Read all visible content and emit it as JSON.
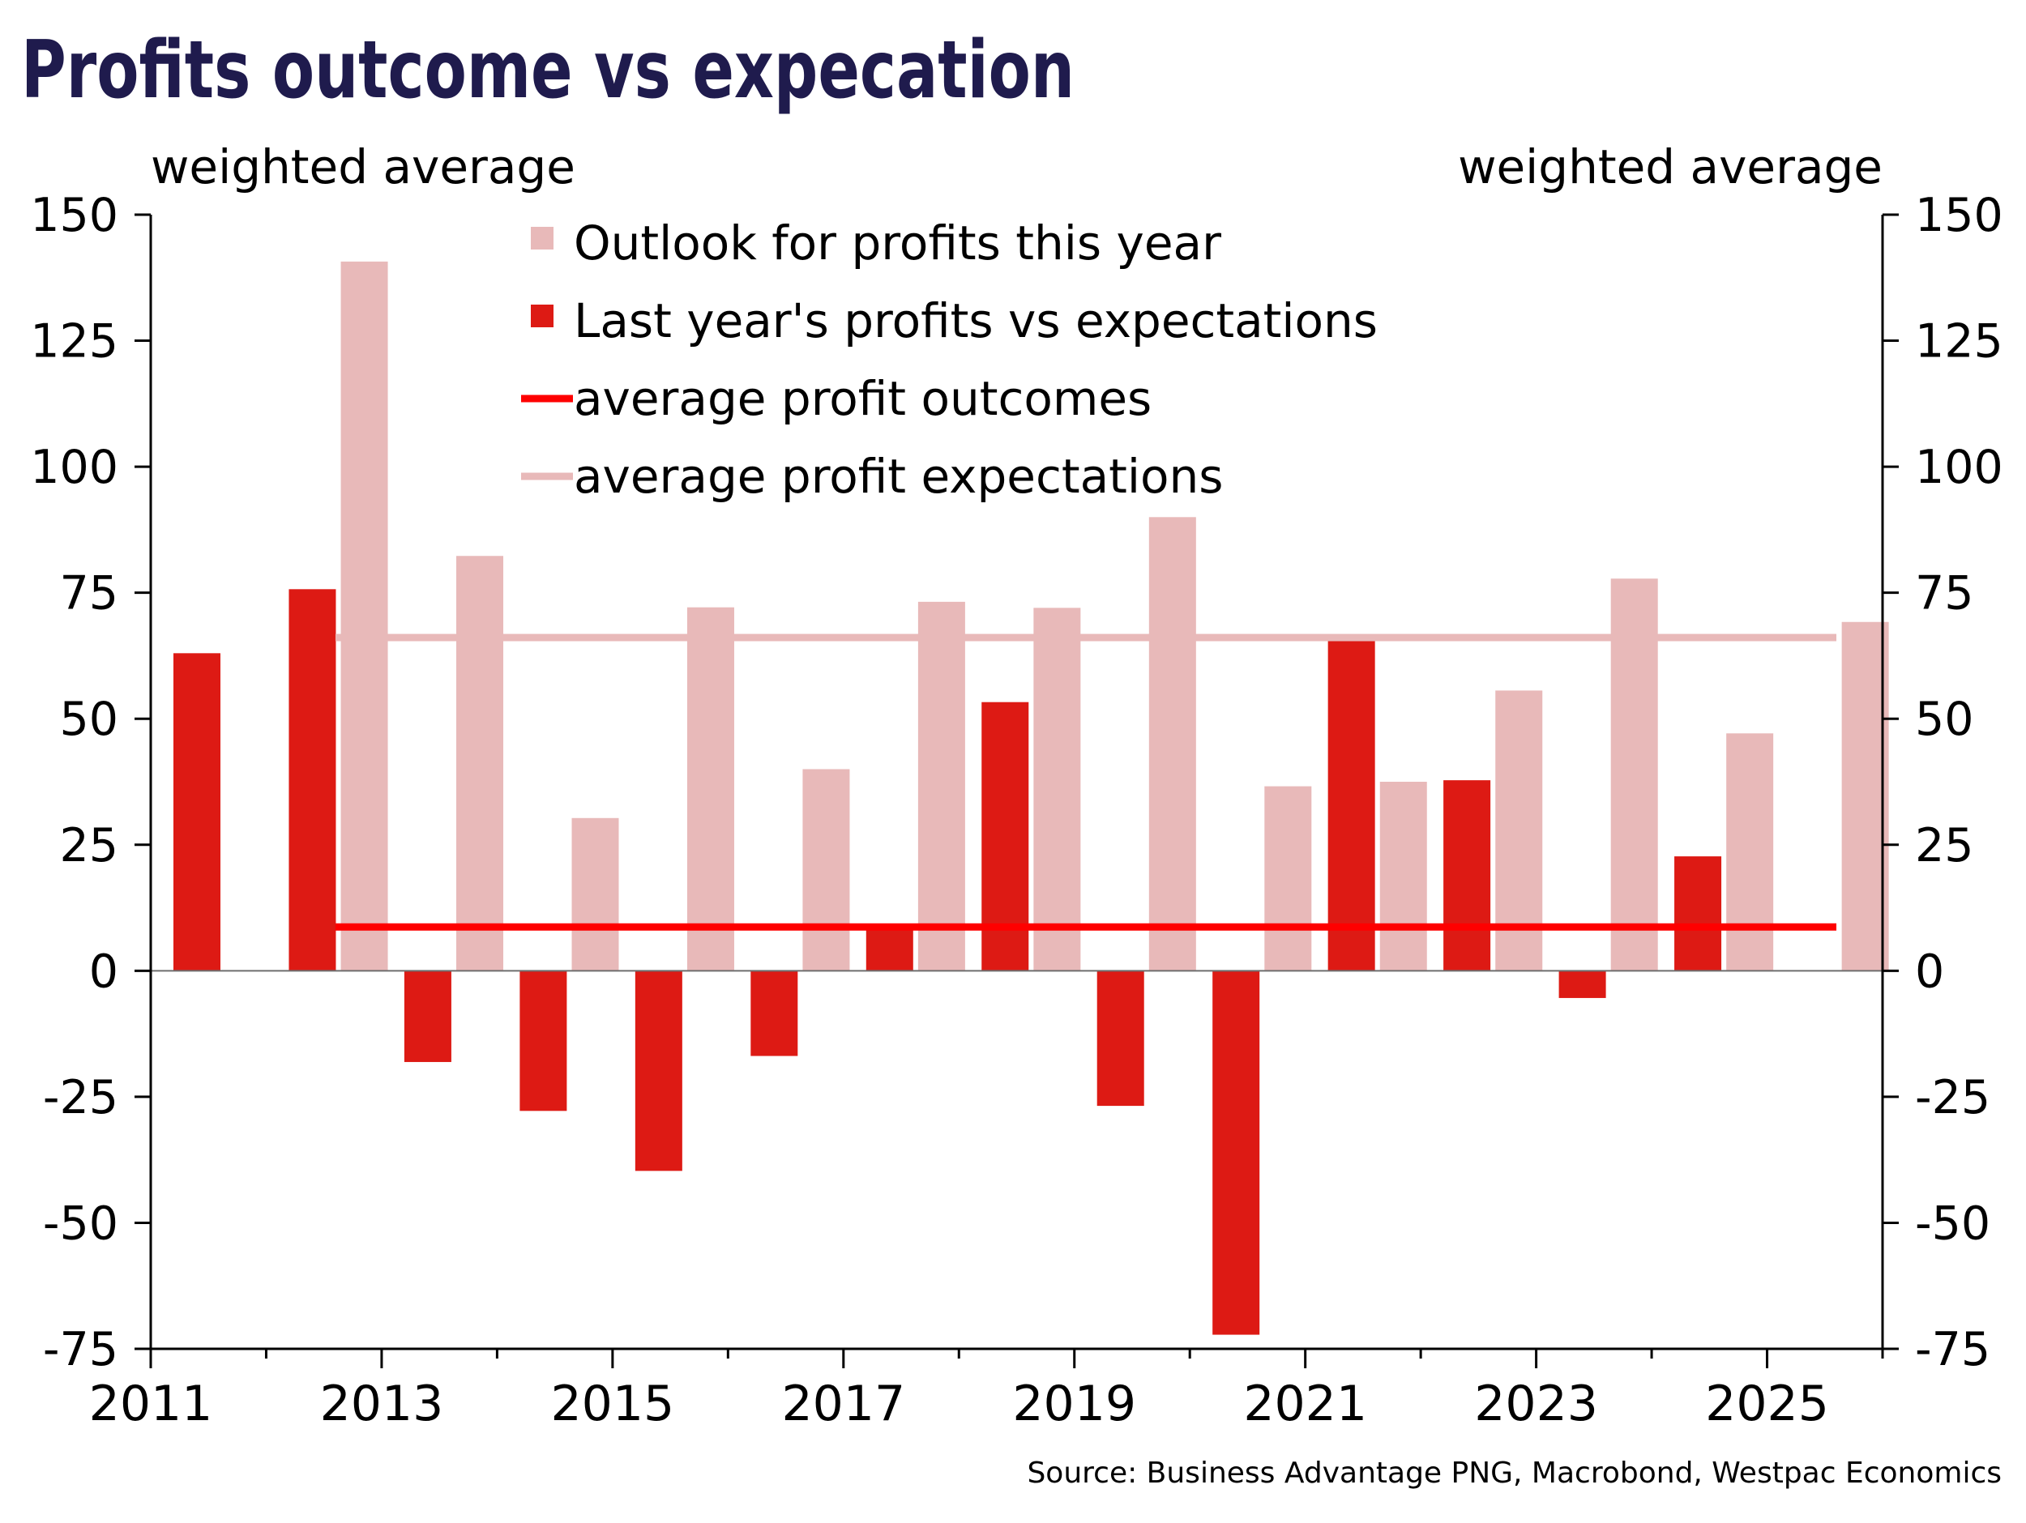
{
  "chart_data": {
    "type": "bar",
    "title": "Profits outcome vs expecation",
    "source": "Source: Business Advantage PNG, Macrobond, Westpac Economics",
    "y_axis_left": {
      "unit_label": "weighted average",
      "ticks": [
        150,
        125,
        100,
        75,
        50,
        25,
        0,
        -25,
        -50,
        -75
      ]
    },
    "y_axis_right": {
      "unit_label": "weighted average",
      "ticks": [
        150,
        125,
        100,
        75,
        50,
        25,
        0,
        -25,
        -50,
        -75
      ]
    },
    "ylim": [
      -75,
      150
    ],
    "xlim": [
      2011,
      2026
    ],
    "x_ticks": [
      2011,
      2013,
      2015,
      2017,
      2019,
      2021,
      2023,
      2025
    ],
    "grid": false,
    "legend_placement": "top-center",
    "colors": {
      "outlook": "#e8b9b9",
      "last_year": "#dd1a14",
      "avg_outcome": "#fe0000",
      "avg_expectation": "#e8b9b9",
      "title": "#1f1b4d",
      "axis": "#000000"
    },
    "series": [
      {
        "name": "Outlook for profits this year",
        "x": [
          2012.85,
          2013.85,
          2014.85,
          2015.85,
          2016.85,
          2017.85,
          2018.85,
          2019.85,
          2020.85,
          2021.85,
          2022.85,
          2023.85,
          2024.85,
          2025.85
        ],
        "values": [
          140.7,
          82.3,
          30.3,
          72.1,
          40.0,
          73.2,
          72.0,
          90.0,
          36.6,
          37.5,
          55.6,
          77.8,
          47.1,
          69.2
        ]
      },
      {
        "name": "Last year's profits vs expectations",
        "x": [
          2011.4,
          2012.4,
          2013.4,
          2014.4,
          2015.4,
          2016.4,
          2017.4,
          2018.4,
          2019.4,
          2020.4,
          2021.4,
          2022.4,
          2023.4,
          2024.4
        ],
        "values": [
          63.0,
          75.7,
          -18.1,
          -27.8,
          -39.7,
          -16.9,
          8.8,
          53.3,
          -26.8,
          -72.2,
          65.4,
          37.8,
          -5.4,
          22.7
        ]
      },
      {
        "name": "average profit outcomes",
        "x": [
          2012.6,
          2025.6
        ],
        "values": [
          8.7,
          8.7
        ]
      },
      {
        "name": "average profit expectations",
        "x": [
          2012.6,
          2025.6
        ],
        "values": [
          66.1,
          66.1
        ]
      }
    ]
  }
}
